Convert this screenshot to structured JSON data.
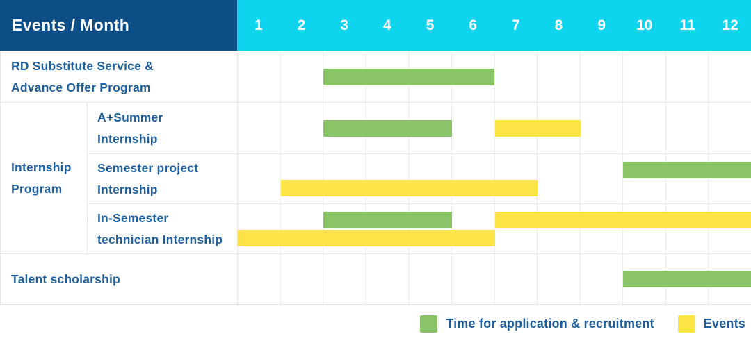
{
  "colors": {
    "header_bg": "#0d4e87",
    "months_bg": "#0ed4ee",
    "green": "#8ac468",
    "yellow": "#fde445",
    "text_blue": "#1e5f9e"
  },
  "header": {
    "title": "Events / Month",
    "months": [
      "1",
      "2",
      "3",
      "4",
      "5",
      "6",
      "7",
      "8",
      "9",
      "10",
      "11",
      "12"
    ]
  },
  "rows": [
    {
      "label_lines": [
        "RD Substitute Service &",
        "Advance Offer Program"
      ],
      "lines": [
        [
          {
            "color": "green",
            "start": 2,
            "end": 6
          }
        ]
      ]
    },
    {
      "group_lines": [
        "Internship",
        "Program"
      ],
      "label_lines": [
        "A+Summer",
        "Internship"
      ],
      "lines": [
        [
          {
            "color": "green",
            "start": 2,
            "end": 5
          },
          {
            "color": "yellow",
            "start": 6,
            "end": 8
          }
        ]
      ]
    },
    {
      "label_lines": [
        "Semester project",
        "Internship"
      ],
      "lines": [
        [
          {
            "color": "green",
            "start": 9,
            "end": 12
          }
        ],
        [
          {
            "color": "yellow",
            "start": 1,
            "end": 7
          }
        ]
      ]
    },
    {
      "label_lines": [
        "In-Semester",
        "technician Internship"
      ],
      "lines": [
        [
          {
            "color": "green",
            "start": 2,
            "end": 5
          },
          {
            "color": "yellow",
            "start": 6,
            "end": 12
          }
        ],
        [
          {
            "color": "yellow",
            "start": 0,
            "end": 6
          }
        ]
      ]
    },
    {
      "label_lines": [
        "Talent scholarship",
        ""
      ],
      "lines": [
        [
          {
            "color": "green",
            "start": 9,
            "end": 12
          }
        ]
      ]
    }
  ],
  "legend": {
    "items": [
      {
        "color": "green",
        "label": "Time for application & recruitment"
      },
      {
        "color": "yellow",
        "label": "Events"
      }
    ]
  },
  "chart_data": {
    "type": "bar",
    "subtype": "gantt",
    "title": "Events / Month",
    "x_axis": {
      "label": "Month",
      "ticks": [
        1,
        2,
        3,
        4,
        5,
        6,
        7,
        8,
        9,
        10,
        11,
        12
      ],
      "range": [
        1,
        12
      ]
    },
    "legend_entries": [
      "Time for application & recruitment",
      "Events"
    ],
    "rows": [
      {
        "event": "RD Substitute Service & Advance Offer Program",
        "group": null,
        "bars": [
          {
            "series": "Time for application & recruitment",
            "start_month": 3,
            "end_month": 6
          }
        ]
      },
      {
        "event": "A+Summer Internship",
        "group": "Internship Program",
        "bars": [
          {
            "series": "Time for application & recruitment",
            "start_month": 3,
            "end_month": 5
          },
          {
            "series": "Events",
            "start_month": 7,
            "end_month": 8
          }
        ]
      },
      {
        "event": "Semester project Internship",
        "group": "Internship Program",
        "bars": [
          {
            "series": "Time for application & recruitment",
            "start_month": 10,
            "end_month": 12
          },
          {
            "series": "Events",
            "start_month": 2,
            "end_month": 7
          }
        ]
      },
      {
        "event": "In-Semester technician Internship",
        "group": "Internship Program",
        "bars": [
          {
            "series": "Time for application & recruitment",
            "start_month": 3,
            "end_month": 5
          },
          {
            "series": "Events",
            "start_month": 7,
            "end_month": 12
          },
          {
            "series": "Events",
            "start_month": 1,
            "end_month": 6
          }
        ]
      },
      {
        "event": "Talent scholarship",
        "group": null,
        "bars": [
          {
            "series": "Time for application & recruitment",
            "start_month": 10,
            "end_month": 12
          }
        ]
      }
    ]
  }
}
